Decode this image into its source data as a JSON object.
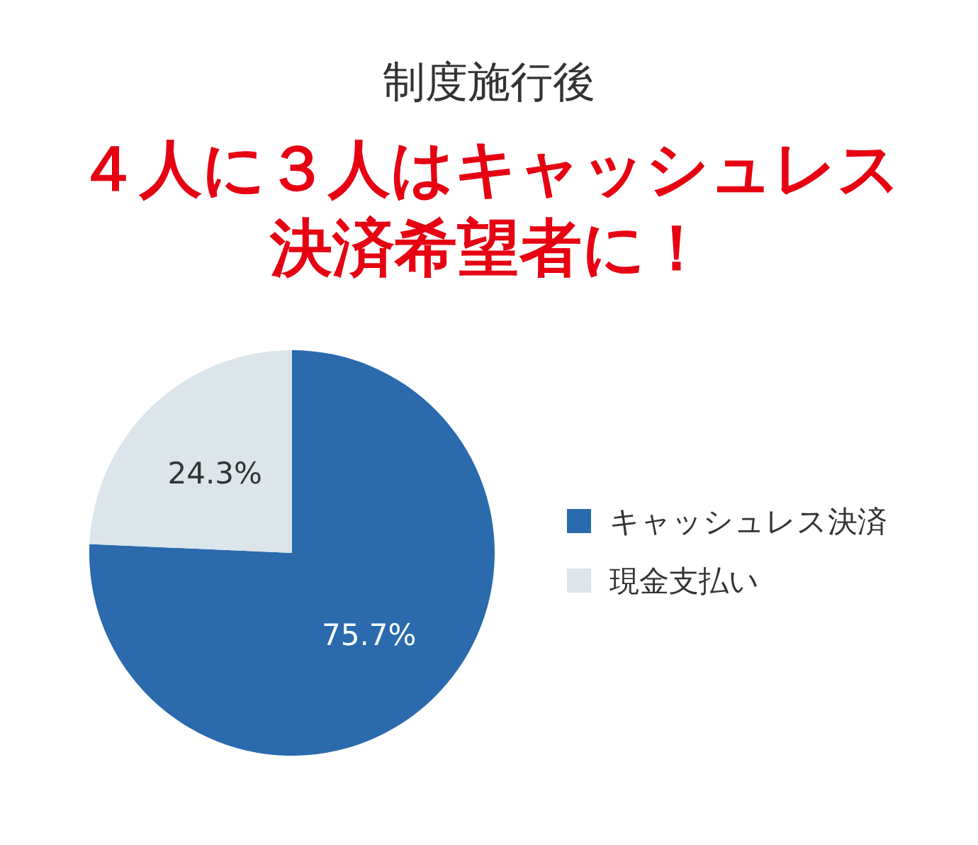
{
  "chart_data": {
    "type": "pie",
    "title": "制度施行後",
    "subtitle": "４人に３人はキャッシュレス決済希望者に！",
    "categories": [
      "キャッシュレス決済",
      "現金支払い"
    ],
    "values": [
      75.7,
      24.3
    ],
    "colors": [
      "#2a6aad",
      "#dbe5ea"
    ],
    "value_labels": [
      "75.7%",
      "24.3%"
    ],
    "legend": "right"
  }
}
